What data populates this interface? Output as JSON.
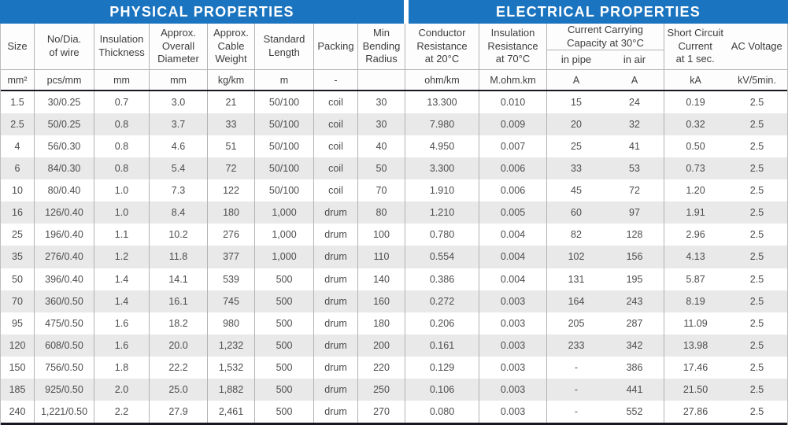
{
  "sections": {
    "physical_title": "PHYSICAL PROPERTIES",
    "electrical_title": "ELECTRICAL PROPERTIES"
  },
  "colors": {
    "header_blue": "#1b74bf",
    "alt_row_gray": "#e9e9e9",
    "dark_rule": "#171721",
    "gridline": "#b3b3b3"
  },
  "col_headers": [
    "Size",
    "No/Dia.\nof wire",
    "Insulation\nThickness",
    "Approx.\nOverall\nDiameter",
    "Approx.\nCable\nWeight",
    "Standard\nLength",
    "Packing",
    "Min\nBending\nRadius",
    "Conductor\nResistance\nat 20°C",
    "Insulation\nResistance\nat 70°C"
  ],
  "current_carrying": {
    "label": "Current Carrying\nCapacity at 30°C",
    "sub": [
      "in pipe",
      "in air"
    ]
  },
  "short_circuit": "Short Circuit\nCurrent\nat 1 sec.",
  "ac_voltage": "AC Voltage",
  "units": [
    "mm²",
    "pcs/mm",
    "mm",
    "mm",
    "kg/km",
    "m",
    "-",
    "",
    "ohm/km",
    "M.ohm.km",
    "A",
    "A",
    "kA",
    "kV/5min."
  ],
  "rows": [
    [
      "1.5",
      "30/0.25",
      "0.7",
      "3.0",
      "21",
      "50/100",
      "coil",
      "30",
      "13.300",
      "0.010",
      "15",
      "24",
      "0.19",
      "2.5"
    ],
    [
      "2.5",
      "50/0.25",
      "0.8",
      "3.7",
      "33",
      "50/100",
      "coil",
      "30",
      "7.980",
      "0.009",
      "20",
      "32",
      "0.32",
      "2.5"
    ],
    [
      "4",
      "56/0.30",
      "0.8",
      "4.6",
      "51",
      "50/100",
      "coil",
      "40",
      "4.950",
      "0.007",
      "25",
      "41",
      "0.50",
      "2.5"
    ],
    [
      "6",
      "84/0.30",
      "0.8",
      "5.4",
      "72",
      "50/100",
      "coil",
      "50",
      "3.300",
      "0.006",
      "33",
      "53",
      "0.73",
      "2.5"
    ],
    [
      "10",
      "80/0.40",
      "1.0",
      "7.3",
      "122",
      "50/100",
      "coil",
      "70",
      "1.910",
      "0.006",
      "45",
      "72",
      "1.20",
      "2.5"
    ],
    [
      "16",
      "126/0.40",
      "1.0",
      "8.4",
      "180",
      "1,000",
      "drum",
      "80",
      "1.210",
      "0.005",
      "60",
      "97",
      "1.91",
      "2.5"
    ],
    [
      "25",
      "196/0.40",
      "1.1",
      "10.2",
      "276",
      "1,000",
      "drum",
      "100",
      "0.780",
      "0.004",
      "82",
      "128",
      "2.96",
      "2.5"
    ],
    [
      "35",
      "276/0.40",
      "1.2",
      "11.8",
      "377",
      "1,000",
      "drum",
      "110",
      "0.554",
      "0.004",
      "102",
      "156",
      "4.13",
      "2.5"
    ],
    [
      "50",
      "396/0.40",
      "1.4",
      "14.1",
      "539",
      "500",
      "drum",
      "140",
      "0.386",
      "0.004",
      "131",
      "195",
      "5.87",
      "2.5"
    ],
    [
      "70",
      "360/0.50",
      "1.4",
      "16.1",
      "745",
      "500",
      "drum",
      "160",
      "0.272",
      "0.003",
      "164",
      "243",
      "8.19",
      "2.5"
    ],
    [
      "95",
      "475/0.50",
      "1.6",
      "18.2",
      "980",
      "500",
      "drum",
      "180",
      "0.206",
      "0.003",
      "205",
      "287",
      "11.09",
      "2.5"
    ],
    [
      "120",
      "608/0.50",
      "1.6",
      "20.0",
      "1,232",
      "500",
      "drum",
      "200",
      "0.161",
      "0.003",
      "233",
      "342",
      "13.98",
      "2.5"
    ],
    [
      "150",
      "756/0.50",
      "1.8",
      "22.2",
      "1,532",
      "500",
      "drum",
      "220",
      "0.129",
      "0.003",
      "-",
      "386",
      "17.46",
      "2.5"
    ],
    [
      "185",
      "925/0.50",
      "2.0",
      "25.0",
      "1,882",
      "500",
      "drum",
      "250",
      "0.106",
      "0.003",
      "-",
      "441",
      "21.50",
      "2.5"
    ],
    [
      "240",
      "1,221/0.50",
      "2.2",
      "27.9",
      "2,461",
      "500",
      "drum",
      "270",
      "0.080",
      "0.003",
      "-",
      "552",
      "27.86",
      "2.5"
    ]
  ]
}
